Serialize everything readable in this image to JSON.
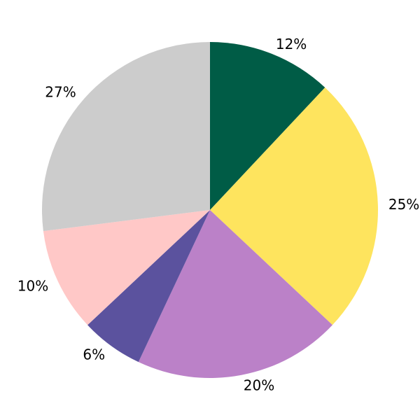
{
  "chart_data": {
    "type": "pie",
    "title": "",
    "slices": [
      {
        "label": "12%",
        "value": 12,
        "color": "#005c46"
      },
      {
        "label": "25%",
        "value": 25,
        "color": "#fee45e"
      },
      {
        "label": "20%",
        "value": 20,
        "color": "#bb81c8"
      },
      {
        "label": "6%",
        "value": 6,
        "color": "#5b529e"
      },
      {
        "label": "10%",
        "value": 10,
        "color": "#ffc8c7"
      },
      {
        "label": "27%",
        "value": 27,
        "color": "#cccccc"
      }
    ],
    "start_angle_deg": 90,
    "counterclock": false,
    "center": [
      300,
      300
    ],
    "radius": 240,
    "label_radius": 255,
    "label_color": "#000000",
    "background": "#ffffff",
    "legend": "none",
    "grid": "off"
  }
}
